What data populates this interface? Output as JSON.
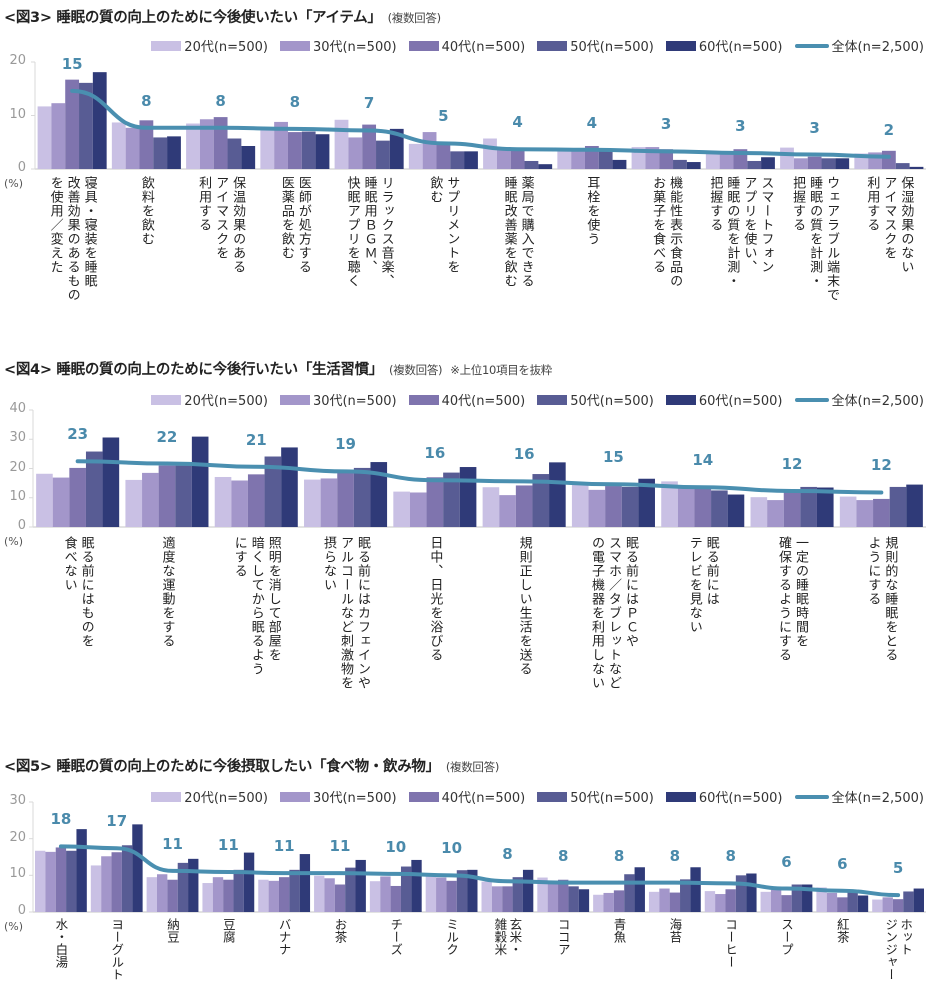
{
  "colors": {
    "s20": "#c9c0e4",
    "s30": "#a396ca",
    "s40": "#7f74ae",
    "s50": "#585c94",
    "s60": "#2f3a78",
    "overall": "#4a8fb0"
  },
  "legend": [
    "20代(n=500)",
    "30代(n=500)",
    "40代(n=500)",
    "50代(n=500)",
    "60代(n=500)",
    "全体(n=2,500)"
  ],
  "chart_data": [
    {
      "type": "bar",
      "title": "<図3> 睡眠の質の向上のために今後使いたい「アイテム」",
      "subtitle": "(複数回答)",
      "ylabel": "(%)",
      "ylim": [
        0,
        20
      ],
      "yticks": [
        "0",
        "10",
        "20"
      ],
      "categories": [
        "寝具・寝装を睡眠\n改善効果のあるもの\nを使用／変えた",
        "飲料を飲む",
        "保温効果のある\nアイマスクを\n利用する",
        "医師が処方する\n医薬品を飲む",
        "リラックス音楽、\n睡眠用ＢＧＭ、\n快眠アプリを聴く",
        "サプリメントを\n飲む",
        "薬局で購入できる\n睡眠改善薬を飲む",
        "耳栓を使う",
        "機能性表示食品の\nお菓子を食べる",
        "スマートフォン\nアプリを使い、\n睡眠の質を計測・\n把握する",
        "ウェアラブル端末で\n睡眠の質を計測・\n把握する",
        "保湿効果のない\nアイマスクを\n利用する"
      ],
      "series": [
        {
          "name": "20代(n=500)",
          "values": [
            11.7,
            8.7,
            8.5,
            7.5,
            9.2,
            4.7,
            5.7,
            3.7,
            4.1,
            3.3,
            4.0,
            2.9
          ]
        },
        {
          "name": "30代(n=500)",
          "values": [
            12.3,
            7.7,
            9.3,
            8.8,
            5.9,
            6.9,
            4.1,
            3.7,
            4.1,
            3.0,
            2.0,
            3.1
          ]
        },
        {
          "name": "40代(n=500)",
          "values": [
            16.7,
            9.1,
            9.7,
            6.9,
            8.3,
            5.1,
            3.7,
            4.3,
            3.7,
            3.7,
            2.3,
            3.4
          ]
        },
        {
          "name": "50代(n=500)",
          "values": [
            16.1,
            5.9,
            5.7,
            7.0,
            5.3,
            3.3,
            1.5,
            3.7,
            1.7,
            1.5,
            2.0,
            1.1
          ]
        },
        {
          "name": "60代(n=500)",
          "values": [
            18.1,
            6.1,
            4.3,
            6.5,
            7.5,
            3.3,
            0.9,
            1.7,
            1.3,
            2.2,
            2.0,
            0.4
          ]
        }
      ],
      "overall": {
        "name": "全体(n=2,500)",
        "values": [
          14.6,
          7.7,
          7.7,
          7.5,
          7.2,
          4.8,
          3.7,
          3.6,
          3.3,
          3.0,
          2.7,
          2.3
        ],
        "labels": [
          "15",
          "8",
          "8",
          "8",
          "7",
          "5",
          "4",
          "4",
          "3",
          "3",
          "3",
          "2"
        ]
      },
      "legend_position": "top-right"
    },
    {
      "type": "bar",
      "title": "<図4> 睡眠の質の向上のために今後行いたい「生活習慣」",
      "subtitle": "(複数回答)",
      "note": "※上位10項目を抜粋",
      "ylabel": "(%)",
      "ylim": [
        0,
        40
      ],
      "yticks": [
        "0",
        "10",
        "20",
        "30",
        "40"
      ],
      "categories": [
        "眠る前にはものを\n食べない",
        "適度な運動をする",
        "照明を消して部屋を\n暗くしてから眠るよう\nにする",
        "眠る前にはカフェインや\nアルコールなど刺激物を\n摂らない",
        "日中、日光を浴びる",
        "規則正しい生活を送る",
        "眠る前にはＰＣや\nスマホ／タブレットなど\nの電子機器を利用しない",
        "眠る前には\nテレビを見ない",
        "一定の睡眠時間を\n確保するようにする",
        "規則的な睡眠をとる\nようにする"
      ],
      "series": [
        {
          "name": "20代(n=500)",
          "values": [
            18.2,
            16.1,
            17.1,
            16.2,
            12.1,
            13.6,
            14.4,
            15.6,
            10.2,
            10.4
          ]
        },
        {
          "name": "30代(n=500)",
          "values": [
            16.9,
            18.5,
            15.9,
            16.6,
            11.8,
            10.9,
            12.7,
            13.5,
            9.2,
            9.2
          ]
        },
        {
          "name": "40代(n=500)",
          "values": [
            20.2,
            21.0,
            18.0,
            19.0,
            17.0,
            14.2,
            14.0,
            13.5,
            12.0,
            9.6
          ]
        },
        {
          "name": "50代(n=500)",
          "values": [
            25.8,
            21.0,
            24.1,
            20.2,
            18.6,
            18.1,
            13.7,
            12.5,
            13.7,
            13.7
          ]
        },
        {
          "name": "60代(n=500)",
          "values": [
            30.6,
            30.9,
            27.2,
            22.2,
            20.5,
            22.1,
            16.5,
            11.1,
            13.5,
            14.5
          ]
        }
      ],
      "overall": {
        "name": "全体(n=2,500)",
        "values": [
          22.5,
          21.7,
          20.6,
          19.0,
          16.0,
          15.6,
          14.6,
          13.6,
          12.3,
          11.8
        ],
        "labels": [
          "23",
          "22",
          "21",
          "19",
          "16",
          "16",
          "15",
          "14",
          "12",
          "12"
        ]
      },
      "legend_position": "top-right"
    },
    {
      "type": "bar",
      "title": "<図5> 睡眠の質の向上のために今後摂取したい「食べ物・飲み物」",
      "subtitle": "(複数回答)",
      "ylabel": "(%)",
      "ylim": [
        0,
        30
      ],
      "yticks": [
        "0",
        "10",
        "20",
        "30"
      ],
      "categories": [
        "水・白湯",
        "ヨーグルト",
        "納豆",
        "豆腐",
        "バナナ",
        "お茶",
        "チーズ",
        "ミルク",
        "玄米・\n雑穀米",
        "ココア",
        "青魚",
        "海苔",
        "コーヒー",
        "スープ",
        "紅茶",
        "ホット\nジンジャー"
      ],
      "series": [
        {
          "name": "20代(n=500)",
          "values": [
            16.7,
            12.7,
            9.5,
            7.9,
            8.8,
            9.9,
            8.4,
            10.0,
            8.3,
            9.4,
            4.7,
            5.5,
            5.7,
            5.5,
            6.7,
            3.4
          ]
        },
        {
          "name": "30代(n=500)",
          "values": [
            16.4,
            15.2,
            10.3,
            9.5,
            8.5,
            9.2,
            9.7,
            9.4,
            7.0,
            8.5,
            5.2,
            6.4,
            4.9,
            6.1,
            5.2,
            4.0
          ]
        },
        {
          "name": "40代(n=500)",
          "values": [
            17.6,
            16.3,
            8.8,
            8.8,
            9.5,
            7.5,
            7.1,
            8.5,
            7.0,
            8.8,
            5.9,
            5.3,
            6.2,
            4.6,
            4.0,
            3.5
          ]
        },
        {
          "name": "50代(n=500)",
          "values": [
            16.7,
            18.2,
            13.4,
            11.5,
            11.5,
            12.1,
            12.4,
            11.4,
            9.5,
            7.0,
            10.3,
            8.9,
            10.0,
            7.5,
            6.1,
            5.6
          ]
        },
        {
          "name": "60代(n=500)",
          "values": [
            22.6,
            23.9,
            14.5,
            16.2,
            15.8,
            14.2,
            14.2,
            11.5,
            11.5,
            6.2,
            12.2,
            12.2,
            10.5,
            7.5,
            4.5,
            6.4
          ]
        }
      ],
      "overall": {
        "name": "全体(n=2,500)",
        "values": [
          17.9,
          17.4,
          11.2,
          10.9,
          10.6,
          10.6,
          10.4,
          10.0,
          8.4,
          8.0,
          8.0,
          8.0,
          7.8,
          6.4,
          5.8,
          4.6
        ],
        "labels": [
          "18",
          "17",
          "11",
          "11",
          "11",
          "11",
          "10",
          "10",
          "8",
          "8",
          "8",
          "8",
          "8",
          "6",
          "6",
          "5"
        ]
      },
      "legend_position": "top-right"
    }
  ]
}
